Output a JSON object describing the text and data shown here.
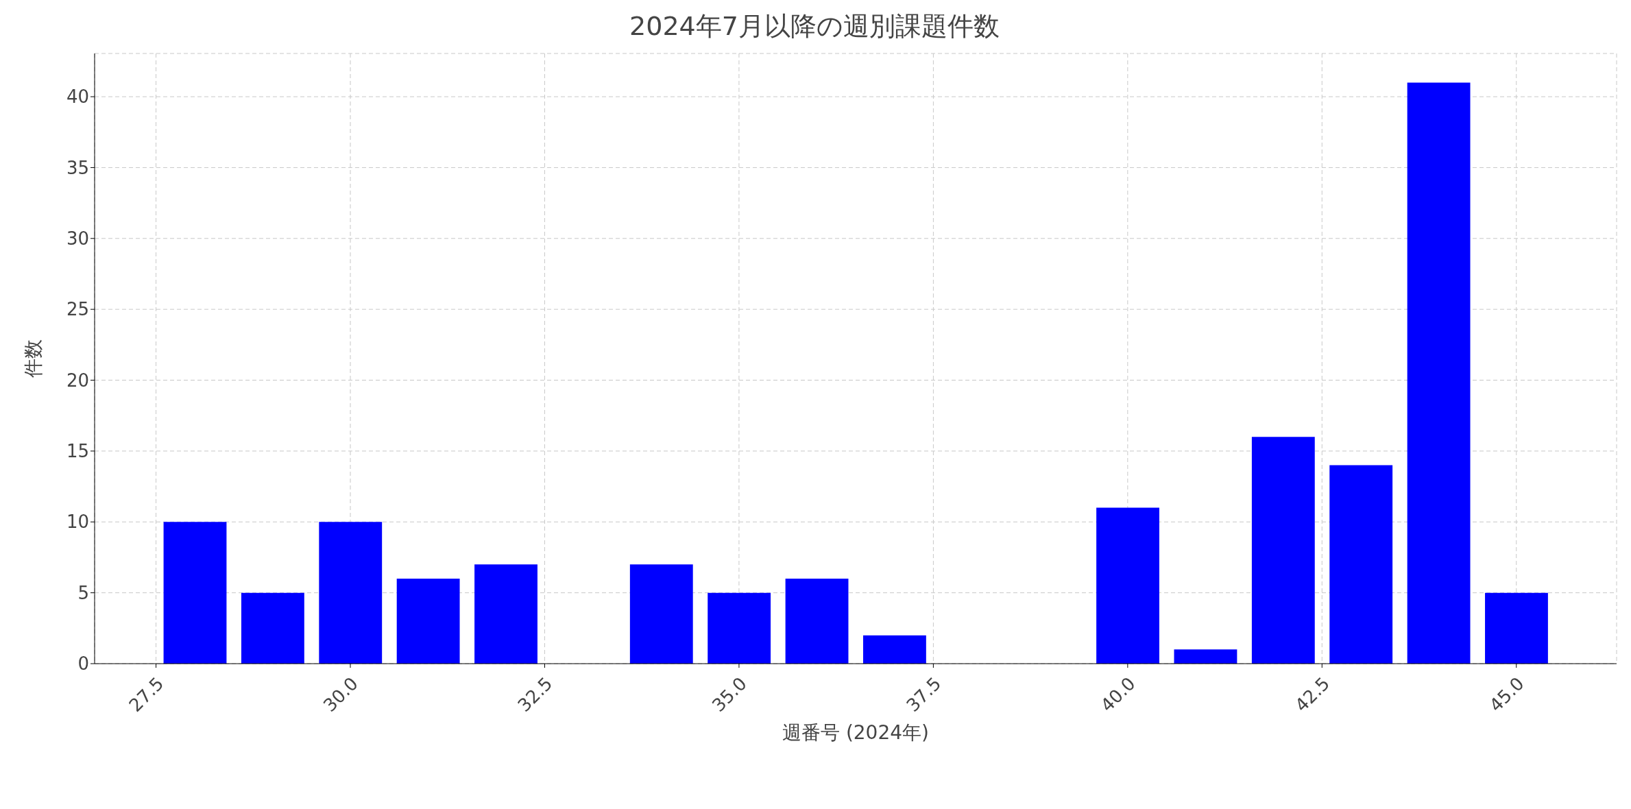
{
  "chart_data": {
    "type": "bar",
    "title": "2024年7月以降の週別課題件数",
    "xlabel": "週番号 (2024年)",
    "ylabel": "件数",
    "x": [
      28,
      29,
      30,
      31,
      32,
      34,
      35,
      36,
      37,
      40,
      41,
      42,
      43,
      44,
      45
    ],
    "values": [
      10,
      5,
      10,
      6,
      7,
      7,
      5,
      6,
      2,
      11,
      1,
      16,
      14,
      41,
      5
    ],
    "color": "#0000ff",
    "xlim": [
      26.71,
      46.29
    ],
    "xticks": [
      {
        "value": 27.5,
        "label": "27.5"
      },
      {
        "value": 30,
        "label": "30.0"
      },
      {
        "value": 32.5,
        "label": "32.5"
      },
      {
        "value": 35,
        "label": "35.0"
      },
      {
        "value": 37.5,
        "label": "37.5"
      },
      {
        "value": 40,
        "label": "40.0"
      },
      {
        "value": 42.5,
        "label": "42.5"
      },
      {
        "value": 45,
        "label": "45.0"
      }
    ],
    "ylim": [
      0,
      43.05
    ],
    "yticks": [
      0,
      5,
      10,
      15,
      20,
      25,
      30,
      35,
      40
    ],
    "grid": true
  }
}
